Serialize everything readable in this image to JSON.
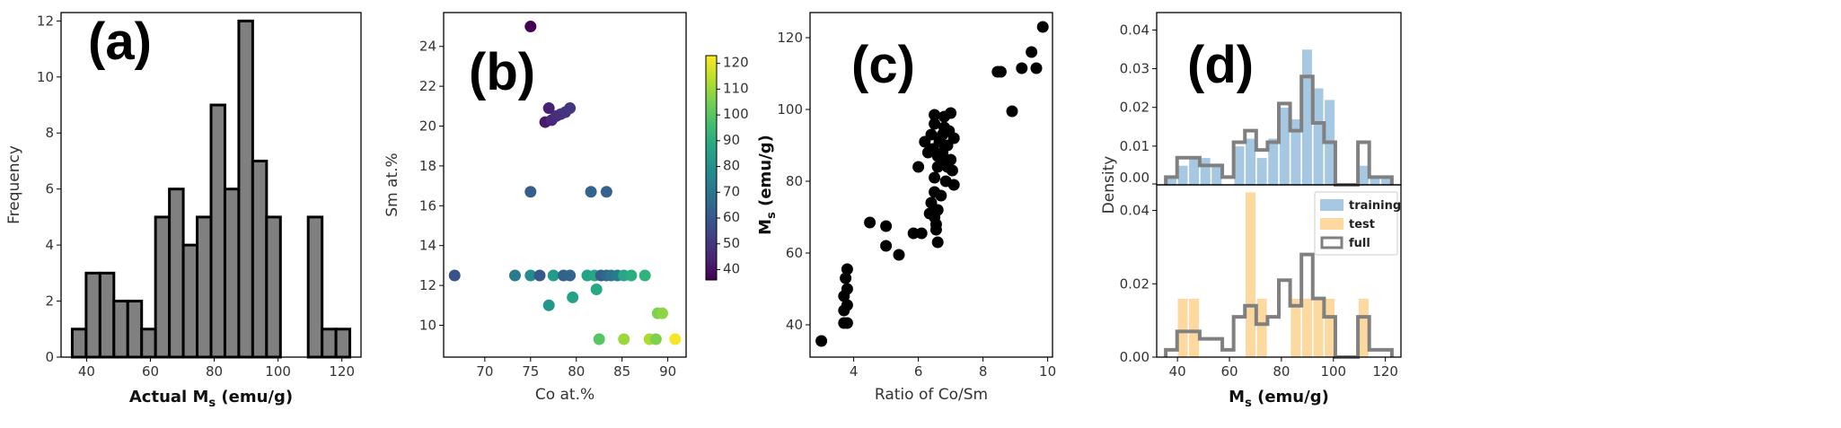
{
  "chart_data": [
    {
      "id": "a",
      "type": "bar",
      "panel_label": "(a)",
      "xlabel": "Actual M",
      "xlabel_sub": "s",
      "xlabel_unit": " (emu/g)",
      "ylabel": "Frequency",
      "xlim": [
        32,
        126
      ],
      "ylim": [
        0,
        12.3
      ],
      "xticks": [
        40,
        60,
        80,
        100,
        120
      ],
      "yticks": [
        0,
        2,
        4,
        6,
        8,
        10,
        12
      ],
      "bin_width": 4.35,
      "bin_start": 35.5,
      "values": [
        1,
        3,
        3,
        2,
        2,
        1,
        5,
        6,
        4,
        5,
        9,
        6,
        12,
        7,
        5,
        0,
        0,
        5,
        1,
        1
      ],
      "bar_color": "#808080"
    },
    {
      "id": "b",
      "type": "scatter",
      "panel_label": "(b)",
      "xlabel": "Co at.%",
      "ylabel": "Sm at.%",
      "xlim": [
        65.5,
        92
      ],
      "ylim": [
        8.4,
        25.7
      ],
      "xticks": [
        70,
        75,
        80,
        85,
        90
      ],
      "yticks": [
        10,
        12,
        14,
        16,
        18,
        20,
        22,
        24
      ],
      "colorbar": {
        "min": 36,
        "max": 123,
        "ticks": [
          40,
          50,
          60,
          70,
          80,
          90,
          100,
          110,
          120
        ],
        "colormap": "viridis"
      },
      "points": [
        {
          "x": 75.0,
          "y": 25.0,
          "c": 36
        },
        {
          "x": 76.6,
          "y": 20.2,
          "c": 42
        },
        {
          "x": 77.0,
          "y": 20.9,
          "c": 44
        },
        {
          "x": 77.3,
          "y": 20.3,
          "c": 46
        },
        {
          "x": 77.8,
          "y": 20.5,
          "c": 47
        },
        {
          "x": 78.3,
          "y": 20.6,
          "c": 48
        },
        {
          "x": 78.8,
          "y": 20.7,
          "c": 49
        },
        {
          "x": 79.3,
          "y": 20.9,
          "c": 50
        },
        {
          "x": 75.0,
          "y": 16.7,
          "c": 62
        },
        {
          "x": 81.6,
          "y": 16.7,
          "c": 64
        },
        {
          "x": 83.3,
          "y": 16.7,
          "c": 63
        },
        {
          "x": 66.7,
          "y": 12.5,
          "c": 58
        },
        {
          "x": 73.3,
          "y": 12.5,
          "c": 72
        },
        {
          "x": 75.0,
          "y": 12.5,
          "c": 78
        },
        {
          "x": 76.0,
          "y": 12.5,
          "c": 60
        },
        {
          "x": 77.5,
          "y": 12.5,
          "c": 84
        },
        {
          "x": 78.6,
          "y": 12.5,
          "c": 63
        },
        {
          "x": 79.3,
          "y": 12.5,
          "c": 64
        },
        {
          "x": 81.2,
          "y": 12.5,
          "c": 86
        },
        {
          "x": 82.0,
          "y": 12.5,
          "c": 88
        },
        {
          "x": 82.7,
          "y": 12.5,
          "c": 62
        },
        {
          "x": 83.3,
          "y": 12.5,
          "c": 65
        },
        {
          "x": 83.8,
          "y": 12.5,
          "c": 70
        },
        {
          "x": 84.5,
          "y": 12.5,
          "c": 72
        },
        {
          "x": 85.2,
          "y": 12.5,
          "c": 88
        },
        {
          "x": 86.0,
          "y": 12.5,
          "c": 90
        },
        {
          "x": 87.5,
          "y": 12.5,
          "c": 92
        },
        {
          "x": 82.2,
          "y": 11.8,
          "c": 88
        },
        {
          "x": 79.6,
          "y": 11.4,
          "c": 86
        },
        {
          "x": 77.0,
          "y": 11.0,
          "c": 82
        },
        {
          "x": 88.9,
          "y": 10.6,
          "c": 106
        },
        {
          "x": 89.4,
          "y": 10.6,
          "c": 108
        },
        {
          "x": 82.5,
          "y": 9.3,
          "c": 100
        },
        {
          "x": 85.2,
          "y": 9.3,
          "c": 110
        },
        {
          "x": 88.0,
          "y": 9.3,
          "c": 112
        },
        {
          "x": 88.7,
          "y": 9.3,
          "c": 106
        },
        {
          "x": 90.8,
          "y": 9.3,
          "c": 122
        }
      ]
    },
    {
      "id": "c",
      "type": "scatter",
      "panel_label": "(c)",
      "xlabel": "Ratio of Co/Sm",
      "ylabel": "M",
      "ylabel_sub": "s",
      "ylabel_unit": " (emu/g)",
      "xlim": [
        2.65,
        10.15
      ],
      "ylim": [
        31,
        127
      ],
      "xticks": [
        4,
        6,
        8,
        10
      ],
      "yticks": [
        40,
        60,
        80,
        100,
        120
      ],
      "points": [
        [
          3.0,
          35.5
        ],
        [
          3.7,
          40.5
        ],
        [
          3.8,
          40.5
        ],
        [
          3.7,
          44
        ],
        [
          3.8,
          45.5
        ],
        [
          3.7,
          48
        ],
        [
          3.8,
          50
        ],
        [
          3.75,
          53
        ],
        [
          3.8,
          55.5
        ],
        [
          4.5,
          68.5
        ],
        [
          5.0,
          62
        ],
        [
          5.0,
          67.5
        ],
        [
          5.4,
          59.5
        ],
        [
          5.85,
          65.5
        ],
        [
          6.0,
          84
        ],
        [
          6.1,
          65.5
        ],
        [
          6.2,
          91
        ],
        [
          6.3,
          88
        ],
        [
          6.35,
          71
        ],
        [
          6.4,
          74
        ],
        [
          6.4,
          93
        ],
        [
          6.45,
          89
        ],
        [
          6.5,
          96
        ],
        [
          6.5,
          98.5
        ],
        [
          6.5,
          81
        ],
        [
          6.5,
          77
        ],
        [
          6.5,
          70
        ],
        [
          6.55,
          68
        ],
        [
          6.55,
          66.5
        ],
        [
          6.6,
          84
        ],
        [
          6.6,
          87
        ],
        [
          6.6,
          63
        ],
        [
          6.65,
          91
        ],
        [
          6.7,
          76
        ],
        [
          6.75,
          88
        ],
        [
          6.75,
          93
        ],
        [
          6.8,
          95
        ],
        [
          6.8,
          98
        ],
        [
          6.85,
          80
        ],
        [
          6.9,
          84
        ],
        [
          6.9,
          90
        ],
        [
          6.95,
          94
        ],
        [
          7.0,
          99
        ],
        [
          7.0,
          86
        ],
        [
          7.05,
          83
        ],
        [
          7.1,
          92
        ],
        [
          7.1,
          79
        ],
        [
          6.6,
          72
        ],
        [
          6.7,
          86
        ],
        [
          8.45,
          110.5
        ],
        [
          8.55,
          110.5
        ],
        [
          8.9,
          99.5
        ],
        [
          9.2,
          111.5
        ],
        [
          9.5,
          116
        ],
        [
          9.65,
          111.5
        ],
        [
          9.85,
          123
        ]
      ]
    },
    {
      "id": "d",
      "type": "bar",
      "panel_label": "(d)",
      "xlabel": "M",
      "xlabel_sub": "s",
      "xlabel_unit": " (emu/g)",
      "ylabel": "Density",
      "xlim": [
        32,
        126
      ],
      "xticks": [
        40,
        60,
        80,
        100,
        120
      ],
      "bin_width": 4.35,
      "bin_start": 35.5,
      "full_density": [
        0.002,
        0.007,
        0.007,
        0.005,
        0.005,
        0.002,
        0.011,
        0.014,
        0.009,
        0.011,
        0.021,
        0.014,
        0.028,
        0.016,
        0.011,
        0.0,
        0.0,
        0.011,
        0.002,
        0.002
      ],
      "top": {
        "ylim": [
          0,
          0.0445
        ],
        "yticks": [
          0.0,
          0.01,
          0.02,
          0.03,
          0.04
        ],
        "ytick_labels": [
          "0.00",
          "0.01",
          "0.02",
          "0.03",
          "0.04"
        ],
        "training_density": [
          0.002,
          0.005,
          0.007,
          0.007,
          0.005,
          0.0,
          0.01,
          0.012,
          0.007,
          0.012,
          0.02,
          0.017,
          0.035,
          0.025,
          0.022,
          0.0,
          0.0,
          0.005,
          0.002,
          0.002
        ]
      },
      "bottom": {
        "ylim": [
          0,
          0.047
        ],
        "yticks": [
          0.0,
          0.02,
          0.04
        ],
        "ytick_labels": [
          "0.00",
          "0.02",
          "0.04"
        ],
        "test_density": [
          0.0,
          0.016,
          0.016,
          0.0,
          0.0,
          0.0,
          0.0,
          0.045,
          0.016,
          0.0,
          0.0,
          0.016,
          0.016,
          0.016,
          0.016,
          0.0,
          0.0,
          0.016,
          0.0,
          0.0
        ]
      },
      "legend": {
        "placement": "top-right",
        "entries": [
          {
            "label": "training",
            "color": "#a6c8e3"
          },
          {
            "label": "test",
            "color": "#fdd9a0"
          },
          {
            "label": "full",
            "color": "#808080"
          }
        ]
      }
    }
  ]
}
